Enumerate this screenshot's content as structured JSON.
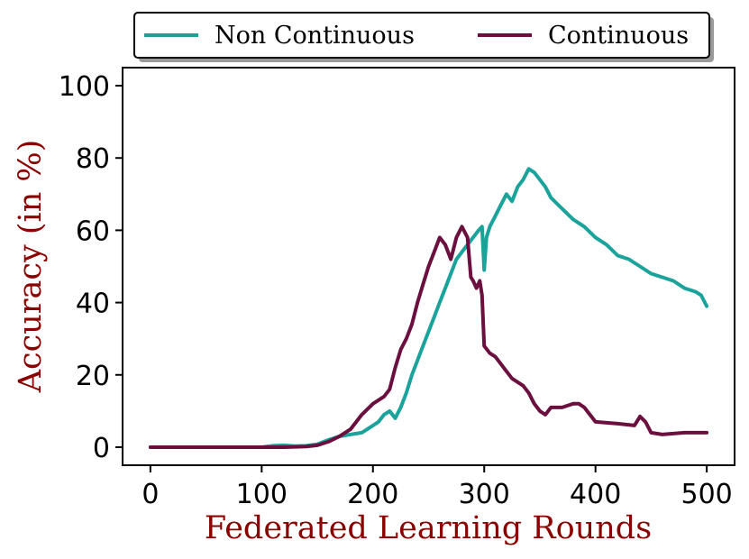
{
  "chart_data": {
    "type": "line",
    "title": "",
    "xlabel": "Federated Learning Rounds",
    "ylabel": "Accuracy (in %)",
    "xlim": [
      -25,
      525
    ],
    "ylim": [
      -5,
      105
    ],
    "xticks": [
      0,
      100,
      200,
      300,
      400,
      500
    ],
    "yticks": [
      0,
      20,
      40,
      60,
      80,
      100
    ],
    "grid": false,
    "legend_position": "top-center",
    "series": [
      {
        "name": "Non Continuous",
        "color": "#1aa39a",
        "x": [
          0,
          20,
          40,
          60,
          80,
          100,
          110,
          120,
          130,
          140,
          150,
          160,
          170,
          180,
          190,
          200,
          205,
          210,
          215,
          220,
          225,
          230,
          235,
          240,
          245,
          250,
          255,
          260,
          265,
          270,
          275,
          280,
          285,
          290,
          295,
          298,
          300,
          302,
          305,
          310,
          315,
          320,
          325,
          330,
          335,
          340,
          345,
          350,
          355,
          360,
          370,
          380,
          390,
          400,
          410,
          420,
          430,
          440,
          450,
          460,
          470,
          480,
          490,
          495,
          500
        ],
        "y": [
          0,
          0,
          0,
          0,
          0,
          0,
          0.4,
          0.5,
          0.3,
          0.4,
          0.8,
          2,
          3,
          3.5,
          4,
          6,
          7,
          9,
          10,
          8,
          11,
          15,
          20,
          24,
          28,
          32,
          36,
          40,
          44,
          48,
          52,
          54,
          56,
          58,
          60,
          61,
          49,
          58,
          61,
          64,
          67,
          70,
          68,
          72,
          74,
          77,
          76,
          74,
          72,
          69,
          66,
          63,
          61,
          58,
          56,
          53,
          52,
          50,
          48,
          47,
          46,
          44,
          43,
          42,
          39
        ]
      },
      {
        "name": "Continuous",
        "color": "#6b0f3e",
        "x": [
          0,
          20,
          40,
          60,
          80,
          100,
          120,
          140,
          150,
          160,
          170,
          180,
          190,
          200,
          210,
          215,
          220,
          225,
          230,
          235,
          240,
          245,
          250,
          255,
          260,
          265,
          270,
          275,
          280,
          285,
          288,
          290,
          293,
          296,
          298,
          300,
          305,
          310,
          315,
          320,
          325,
          330,
          335,
          340,
          345,
          350,
          355,
          360,
          370,
          380,
          385,
          390,
          395,
          400,
          420,
          435,
          440,
          445,
          450,
          460,
          480,
          500
        ],
        "y": [
          0,
          0,
          0,
          0,
          0,
          0,
          0,
          0.2,
          0.5,
          1.5,
          3,
          5,
          9,
          12,
          14,
          16,
          22,
          27,
          30,
          34,
          40,
          45,
          50,
          54,
          58,
          56,
          52,
          58,
          61,
          58,
          47,
          46,
          44,
          46,
          42,
          28,
          26,
          25,
          23,
          21,
          19,
          18,
          17,
          15,
          12,
          10,
          9,
          11,
          11,
          12,
          12,
          11,
          9,
          7,
          6.5,
          6,
          8.5,
          7,
          4,
          3.5,
          4,
          4
        ]
      }
    ]
  },
  "x_ticks_labels": [
    "0",
    "100",
    "200",
    "300",
    "400",
    "500"
  ],
  "y_ticks_labels": [
    "0",
    "20",
    "40",
    "60",
    "80",
    "100"
  ]
}
